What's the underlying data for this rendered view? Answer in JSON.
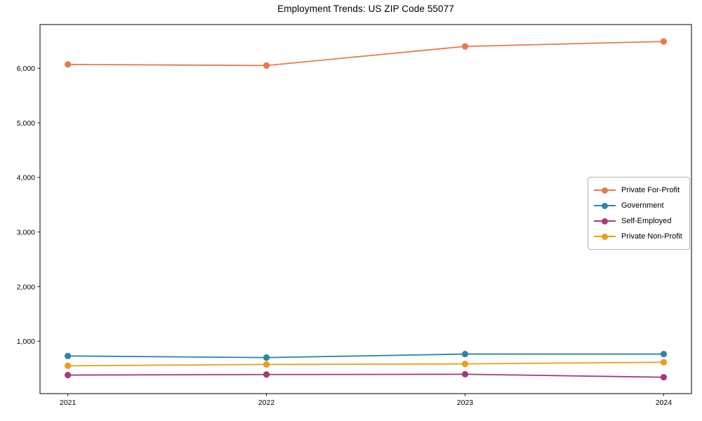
{
  "chart_data": {
    "type": "line",
    "title": "Employment Trends: US ZIP Code 55077",
    "x": [
      2021,
      2022,
      2023,
      2024
    ],
    "x_tick_labels": [
      "2021",
      "2022",
      "2023",
      "2024"
    ],
    "series": [
      {
        "name": "Private For-Profit",
        "color": "#e8784d",
        "values": [
          6070,
          6050,
          6400,
          6490
        ]
      },
      {
        "name": "Government",
        "color": "#2d85a5",
        "values": [
          730,
          700,
          765,
          765
        ]
      },
      {
        "name": "Self-Employed",
        "color": "#a33b78",
        "values": [
          380,
          390,
          395,
          340
        ]
      },
      {
        "name": "Private Non-Profit",
        "color": "#f09c1a",
        "values": [
          550,
          575,
          585,
          615
        ]
      }
    ],
    "xlabel": "",
    "ylabel": "",
    "xlim": [
      2020.86,
      2024.14
    ],
    "ylim": [
      40,
      6800
    ],
    "yticks": [
      1000,
      2000,
      3000,
      4000,
      5000,
      6000
    ],
    "ytick_label_format": "comma",
    "grid": false,
    "legend_position": "center-right",
    "marker": "circle",
    "marker_radius": 4.6,
    "line_width": 1.8,
    "axis_color": "#000000",
    "background": "#ffffff"
  }
}
